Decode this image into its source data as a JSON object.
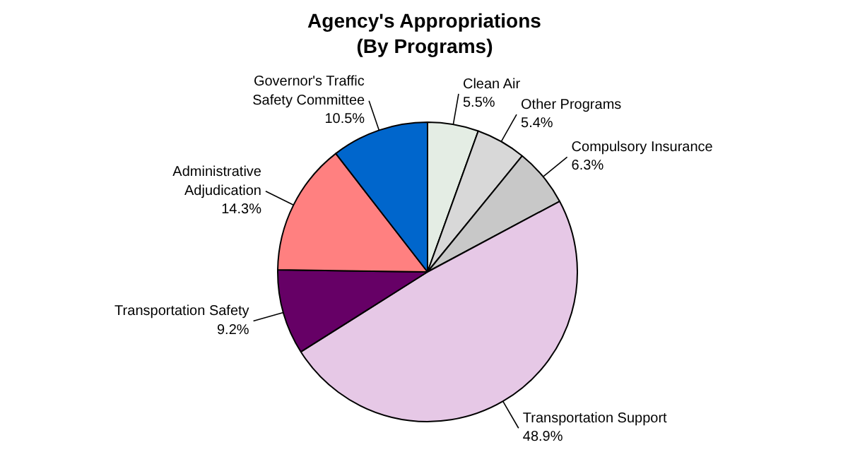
{
  "chart_data": {
    "type": "pie",
    "title": "Agency's Appropriations",
    "subtitle": "(By Programs)",
    "categories": [
      "Clean Air",
      "Other Programs",
      "Compulsory Insurance",
      "Transportation Support",
      "Transportation Safety",
      "Administrative Adjudication",
      "Governor's Traffic Safety Committee"
    ],
    "values": [
      5.5,
      5.4,
      6.3,
      48.9,
      9.2,
      14.3,
      10.5
    ],
    "value_labels": [
      "5.5%",
      "5.4%",
      "6.3%",
      "48.9%",
      "9.2%",
      "14.3%",
      "10.5%"
    ],
    "colors": [
      "#e4ede4",
      "#d8d8d8",
      "#c8c8c8",
      "#e6c8e6",
      "#660066",
      "#ff8080",
      "#0066cc"
    ]
  }
}
